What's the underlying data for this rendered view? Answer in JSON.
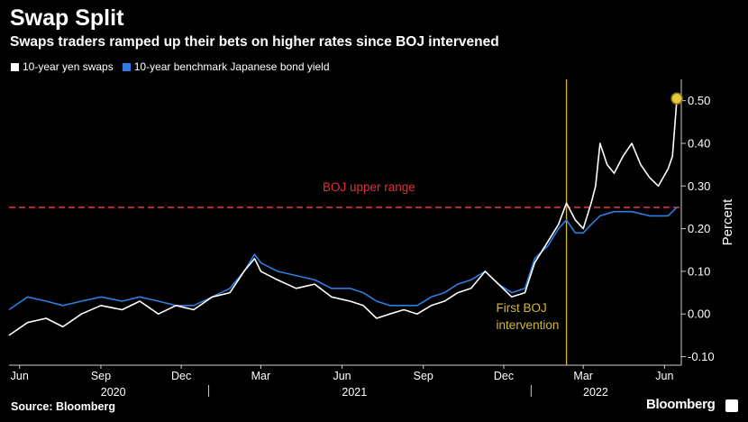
{
  "title": "Swap Split",
  "subtitle": "Swaps traders ramped up their bets on higher rates since BOJ intervened",
  "source": "Source: Bloomberg",
  "brand": "Bloomberg",
  "colors": {
    "background": "#000000",
    "swaps": "#ffffff",
    "jgb": "#2f7de1",
    "boj_range": "#e0303c",
    "intervention": "#d4b83a",
    "latest_marker": "#e8c93a",
    "axis": "#cccccc"
  },
  "chart_data": {
    "type": "line",
    "ylabel": "Percent",
    "ylim": [
      -0.12,
      0.55
    ],
    "y_ticks": [
      "-0.10",
      "0.00",
      "0.10",
      "0.20",
      "0.30",
      "0.40",
      "0.50"
    ],
    "y_tick_values": [
      -0.1,
      0.0,
      0.1,
      0.2,
      0.3,
      0.4,
      0.5
    ],
    "x_range": [
      "2020-05-20",
      "2022-06-20"
    ],
    "month_ticks": [
      {
        "label": "Jun",
        "date": "2020-06-01"
      },
      {
        "label": "Sep",
        "date": "2020-09-01"
      },
      {
        "label": "Dec",
        "date": "2020-12-01"
      },
      {
        "label": "Mar",
        "date": "2021-03-01"
      },
      {
        "label": "Jun",
        "date": "2021-06-01"
      },
      {
        "label": "Sep",
        "date": "2021-09-01"
      },
      {
        "label": "Dec",
        "date": "2021-12-01"
      },
      {
        "label": "Mar",
        "date": "2022-03-01"
      },
      {
        "label": "Jun",
        "date": "2022-06-01"
      }
    ],
    "year_labels": [
      {
        "label": "2020",
        "date": "2020-09-15"
      },
      {
        "label": "2021",
        "date": "2021-06-15"
      },
      {
        "label": "2022",
        "date": "2022-03-15"
      }
    ],
    "year_separators": [
      "2021-01-01",
      "2022-01-01"
    ],
    "reference_line": {
      "label": "BOJ upper range",
      "y": 0.25
    },
    "event_line": {
      "label_line1": "First BOJ",
      "label_line2": "intervention",
      "date": "2022-02-10"
    },
    "latest_point": {
      "date": "2022-06-15",
      "y": 0.505
    },
    "series": [
      {
        "name": "10-year yen swaps",
        "x": [
          "2020-05-20",
          "2020-06-10",
          "2020-07-01",
          "2020-07-20",
          "2020-08-10",
          "2020-09-01",
          "2020-09-25",
          "2020-10-15",
          "2020-11-05",
          "2020-11-25",
          "2020-12-15",
          "2021-01-05",
          "2021-01-25",
          "2021-02-10",
          "2021-02-22",
          "2021-03-01",
          "2021-03-20",
          "2021-04-10",
          "2021-05-01",
          "2021-05-20",
          "2021-06-10",
          "2021-06-25",
          "2021-07-10",
          "2021-07-25",
          "2021-08-10",
          "2021-08-25",
          "2021-09-10",
          "2021-09-25",
          "2021-10-10",
          "2021-10-25",
          "2021-11-10",
          "2021-11-25",
          "2021-12-10",
          "2021-12-25",
          "2022-01-05",
          "2022-01-20",
          "2022-02-01",
          "2022-02-10",
          "2022-02-20",
          "2022-03-01",
          "2022-03-10",
          "2022-03-15",
          "2022-03-20",
          "2022-03-28",
          "2022-04-05",
          "2022-04-15",
          "2022-04-25",
          "2022-05-05",
          "2022-05-15",
          "2022-05-25",
          "2022-06-05",
          "2022-06-10",
          "2022-06-15"
        ],
        "y": [
          -0.05,
          -0.02,
          -0.01,
          -0.03,
          0.0,
          0.02,
          0.01,
          0.03,
          0.0,
          0.02,
          0.01,
          0.04,
          0.05,
          0.1,
          0.13,
          0.1,
          0.08,
          0.06,
          0.07,
          0.04,
          0.03,
          0.02,
          -0.01,
          0.0,
          0.01,
          0.0,
          0.02,
          0.03,
          0.05,
          0.06,
          0.1,
          0.07,
          0.04,
          0.05,
          0.12,
          0.17,
          0.21,
          0.26,
          0.22,
          0.2,
          0.26,
          0.3,
          0.4,
          0.35,
          0.33,
          0.37,
          0.4,
          0.35,
          0.32,
          0.3,
          0.34,
          0.37,
          0.505
        ]
      },
      {
        "name": "10-year benchmark Japanese bond yield",
        "x": [
          "2020-05-20",
          "2020-06-10",
          "2020-07-01",
          "2020-07-20",
          "2020-08-10",
          "2020-09-01",
          "2020-09-25",
          "2020-10-15",
          "2020-11-05",
          "2020-11-25",
          "2020-12-15",
          "2021-01-05",
          "2021-01-25",
          "2021-02-10",
          "2021-02-22",
          "2021-03-01",
          "2021-03-20",
          "2021-04-10",
          "2021-05-01",
          "2021-05-20",
          "2021-06-10",
          "2021-06-25",
          "2021-07-10",
          "2021-07-25",
          "2021-08-10",
          "2021-08-25",
          "2021-09-10",
          "2021-09-25",
          "2021-10-10",
          "2021-10-25",
          "2021-11-10",
          "2021-11-25",
          "2021-12-10",
          "2021-12-25",
          "2022-01-05",
          "2022-01-20",
          "2022-02-01",
          "2022-02-10",
          "2022-02-20",
          "2022-03-01",
          "2022-03-10",
          "2022-03-20",
          "2022-04-05",
          "2022-04-25",
          "2022-05-15",
          "2022-06-05",
          "2022-06-15"
        ],
        "y": [
          0.01,
          0.04,
          0.03,
          0.02,
          0.03,
          0.04,
          0.03,
          0.04,
          0.03,
          0.02,
          0.02,
          0.04,
          0.06,
          0.1,
          0.14,
          0.12,
          0.1,
          0.09,
          0.08,
          0.06,
          0.06,
          0.05,
          0.03,
          0.02,
          0.02,
          0.02,
          0.04,
          0.05,
          0.07,
          0.08,
          0.1,
          0.07,
          0.05,
          0.06,
          0.13,
          0.16,
          0.2,
          0.22,
          0.19,
          0.19,
          0.21,
          0.23,
          0.24,
          0.24,
          0.23,
          0.23,
          0.25
        ]
      }
    ]
  }
}
